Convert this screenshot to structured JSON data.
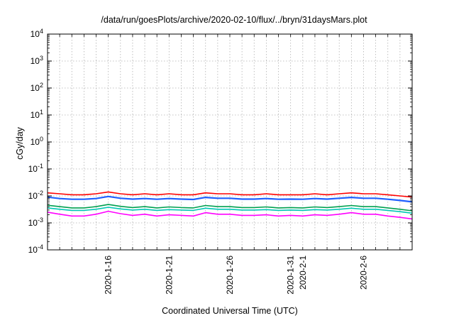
{
  "chart_data": {
    "type": "line",
    "title": "/data/run/goesPlots/archive/2020-02-10/flux/../bryn/31daysMars.plot",
    "xlabel": "Coordinated Universal Time (UTC)",
    "ylabel": "cGy/day",
    "y_scale": "log",
    "ylim": [
      0.0001,
      10000
    ],
    "y_ticks": [
      {
        "value": 10000,
        "base": "10",
        "exp": "4"
      },
      {
        "value": 1000,
        "base": "10",
        "exp": "3"
      },
      {
        "value": 100,
        "base": "10",
        "exp": "2"
      },
      {
        "value": 10,
        "base": "10",
        "exp": "1"
      },
      {
        "value": 1,
        "base": "10",
        "exp": "0"
      },
      {
        "value": 0.1,
        "base": "10",
        "exp": "-1"
      },
      {
        "value": 0.01,
        "base": "10",
        "exp": "-2"
      },
      {
        "value": 0.001,
        "base": "10",
        "exp": "-3"
      },
      {
        "value": 0.0001,
        "base": "10",
        "exp": "-4"
      }
    ],
    "xlim": [
      "2020-01-11",
      "2020-02-10"
    ],
    "x_ticks": [
      "2020-1-16",
      "2020-1-21",
      "2020-1-26",
      "2020-1-31",
      "2020-2-1",
      "2020-2-6"
    ],
    "grid": true,
    "legend": "none",
    "x": [
      "2020-01-11",
      "2020-01-12",
      "2020-01-13",
      "2020-01-14",
      "2020-01-15",
      "2020-01-16",
      "2020-01-17",
      "2020-01-18",
      "2020-01-19",
      "2020-01-20",
      "2020-01-21",
      "2020-01-22",
      "2020-01-23",
      "2020-01-24",
      "2020-01-25",
      "2020-01-26",
      "2020-01-27",
      "2020-01-28",
      "2020-01-29",
      "2020-01-30",
      "2020-01-31",
      "2020-02-01",
      "2020-02-02",
      "2020-02-03",
      "2020-02-04",
      "2020-02-05",
      "2020-02-06",
      "2020-02-07",
      "2020-02-08",
      "2020-02-09",
      "2020-02-10"
    ],
    "series": [
      {
        "color": "#ff0000",
        "values": [
          0.013,
          0.012,
          0.011,
          0.011,
          0.012,
          0.014,
          0.012,
          0.011,
          0.012,
          0.011,
          0.012,
          0.011,
          0.011,
          0.013,
          0.012,
          0.012,
          0.011,
          0.011,
          0.012,
          0.011,
          0.011,
          0.011,
          0.012,
          0.011,
          0.012,
          0.013,
          0.012,
          0.012,
          0.011,
          0.01,
          0.009
        ]
      },
      {
        "color": "#2060ff",
        "values": [
          0.009,
          0.008,
          0.0075,
          0.0075,
          0.008,
          0.0095,
          0.0082,
          0.0076,
          0.008,
          0.0075,
          0.008,
          0.0076,
          0.0074,
          0.0088,
          0.0082,
          0.0082,
          0.0076,
          0.0076,
          0.008,
          0.0075,
          0.0076,
          0.0075,
          0.008,
          0.0076,
          0.0082,
          0.0088,
          0.0082,
          0.0082,
          0.0075,
          0.0068,
          0.006
        ]
      },
      {
        "color": "#00a050",
        "values": [
          0.0045,
          0.004,
          0.0036,
          0.0036,
          0.004,
          0.0048,
          0.0041,
          0.0037,
          0.004,
          0.0036,
          0.0039,
          0.0037,
          0.0036,
          0.0044,
          0.004,
          0.004,
          0.0037,
          0.0037,
          0.0039,
          0.0036,
          0.0037,
          0.0036,
          0.0039,
          0.0037,
          0.004,
          0.0044,
          0.004,
          0.004,
          0.0036,
          0.0032,
          0.0028
        ]
      },
      {
        "color": "#00c8b4",
        "values": [
          0.0036,
          0.0032,
          0.0029,
          0.0029,
          0.0032,
          0.0038,
          0.0033,
          0.003,
          0.0032,
          0.0029,
          0.0031,
          0.003,
          0.0029,
          0.0035,
          0.0032,
          0.0032,
          0.003,
          0.003,
          0.0031,
          0.0029,
          0.003,
          0.0029,
          0.0031,
          0.003,
          0.0032,
          0.0035,
          0.0032,
          0.0032,
          0.0029,
          0.0026,
          0.0023
        ]
      },
      {
        "color": "#ff00ff",
        "values": [
          0.0025,
          0.0021,
          0.0018,
          0.0018,
          0.0021,
          0.0027,
          0.0022,
          0.0019,
          0.0021,
          0.0018,
          0.002,
          0.0019,
          0.0018,
          0.0024,
          0.0021,
          0.0021,
          0.0019,
          0.0019,
          0.002,
          0.0018,
          0.0019,
          0.0018,
          0.002,
          0.0019,
          0.0021,
          0.0024,
          0.0021,
          0.0021,
          0.0018,
          0.0016,
          0.0014
        ]
      }
    ]
  }
}
